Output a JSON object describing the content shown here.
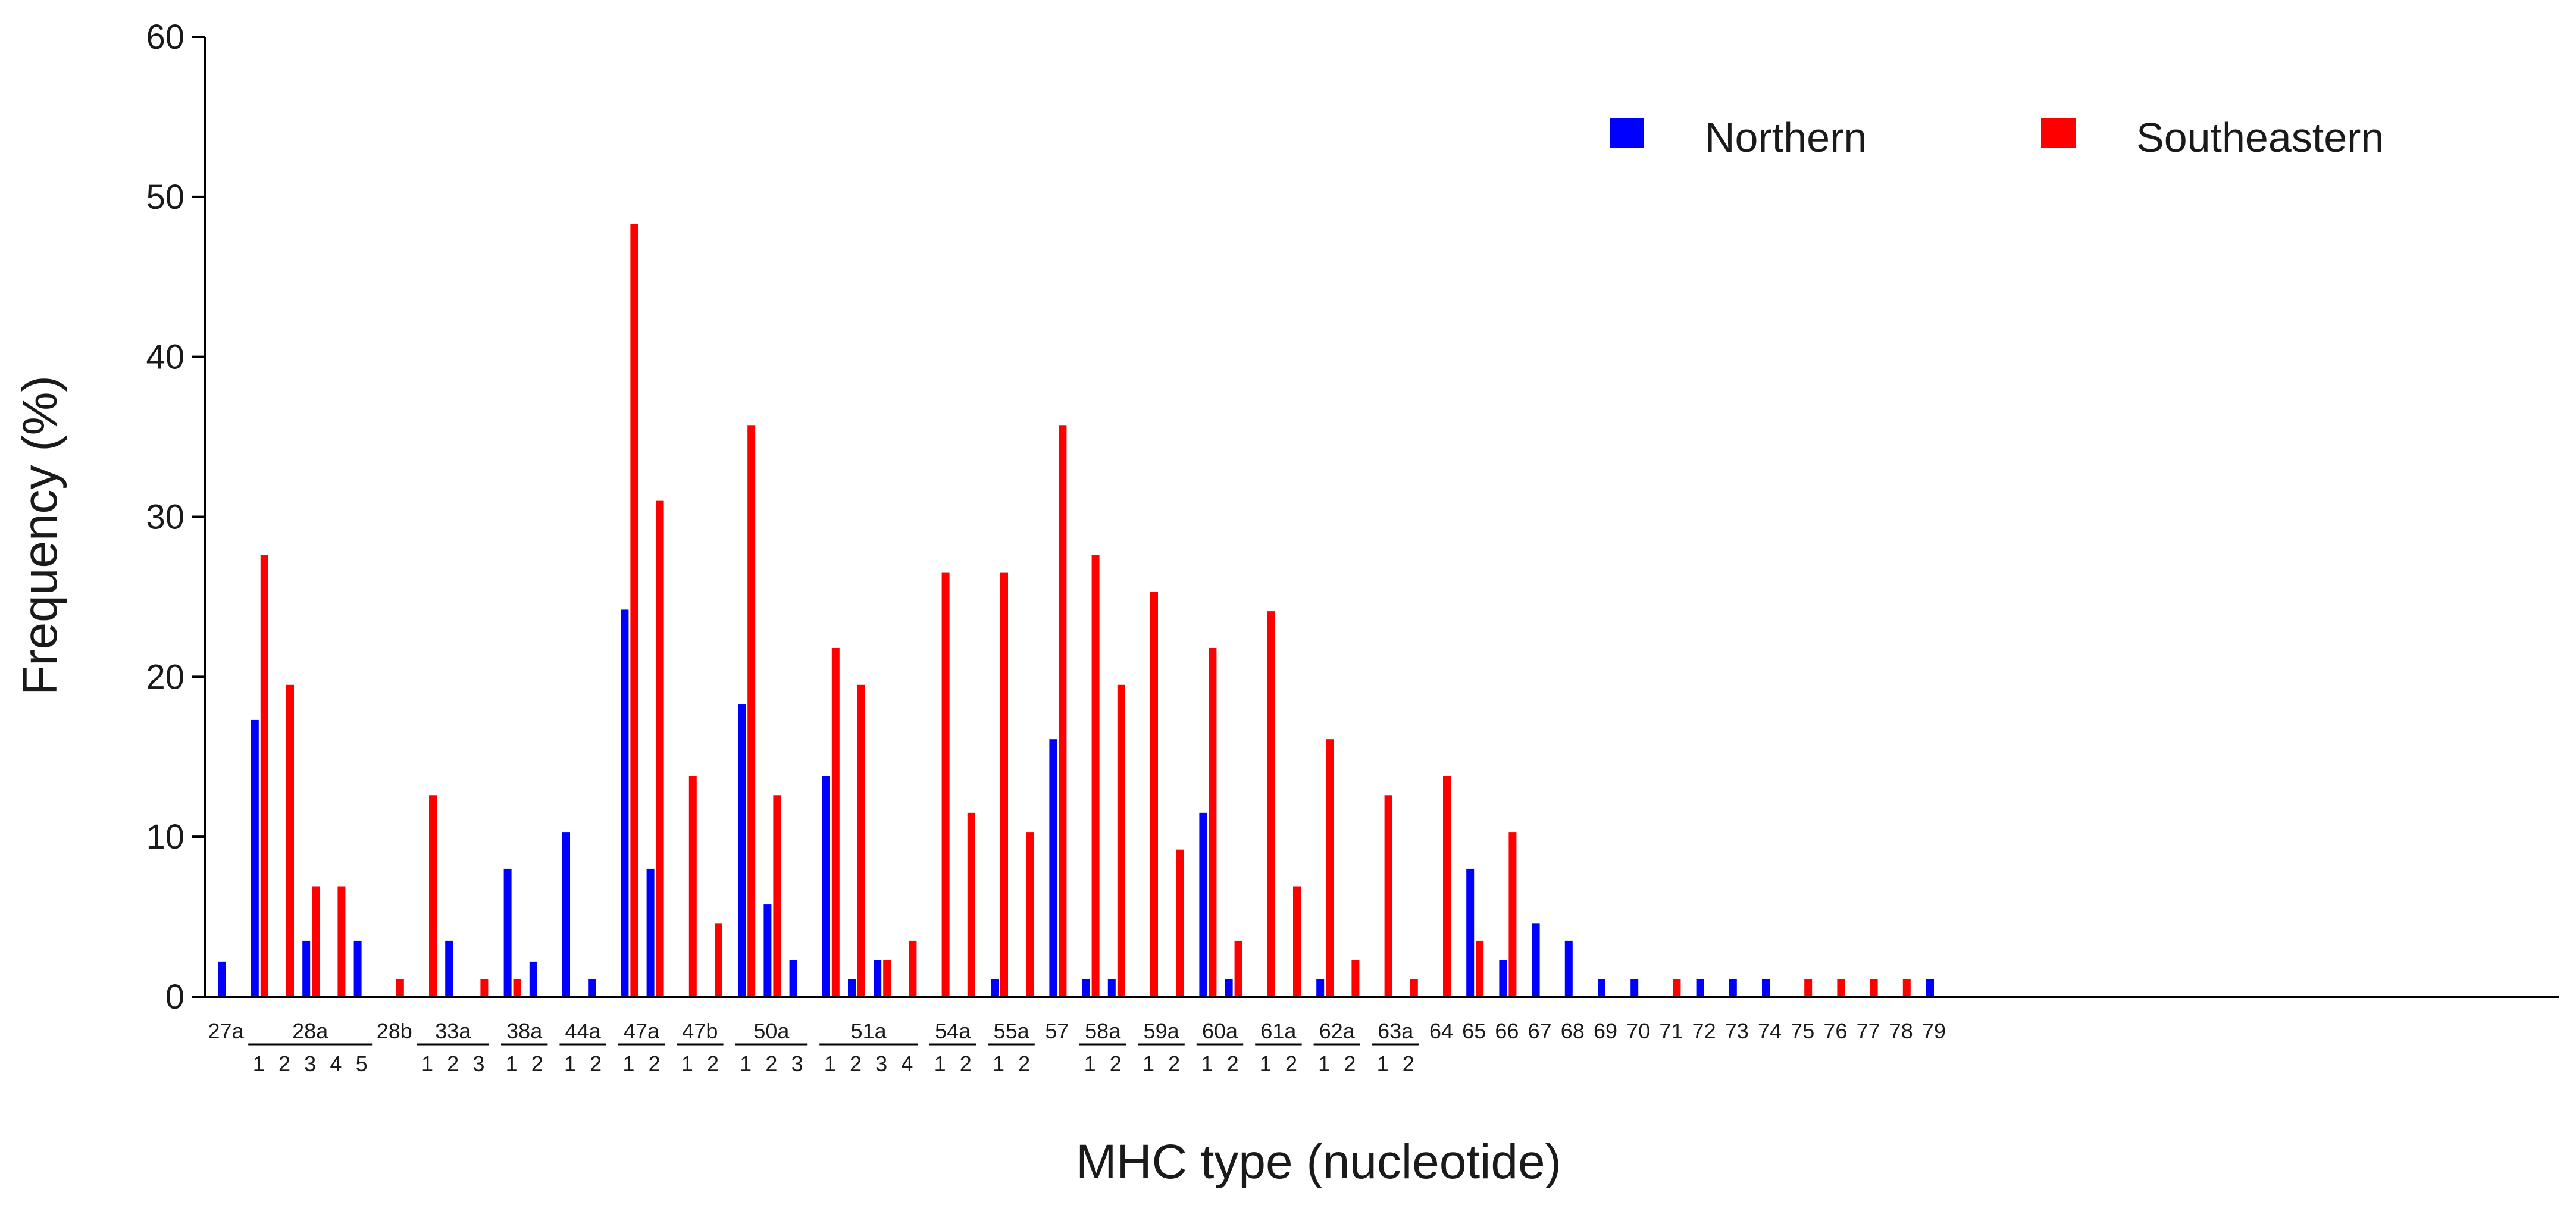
{
  "chart_data": {
    "type": "bar",
    "title": "",
    "xlabel": "MHC type (nucleotide)",
    "ylabel": "Frequency (%)",
    "ylim": [
      0,
      60
    ],
    "yticks": [
      "0",
      "10",
      "20",
      "30",
      "40",
      "50",
      "60"
    ],
    "grid": false,
    "legend_position": "top-right",
    "colors": {
      "Northern": "#0000ff",
      "Southeastern": "#ff0000"
    },
    "series": [
      {
        "name": "Northern",
        "color": "#0000ff",
        "points": [
          {
            "group": "27a",
            "allele": "",
            "value": 2.2
          },
          {
            "group": "28a",
            "allele": "1",
            "value": 17.3
          },
          {
            "group": "28a",
            "allele": "3",
            "value": 3.5
          },
          {
            "group": "28a",
            "allele": "5",
            "value": 3.5
          },
          {
            "group": "33a",
            "allele": "2",
            "value": 3.5
          },
          {
            "group": "38a",
            "allele": "1",
            "value": 8.0
          },
          {
            "group": "38a",
            "allele": "2",
            "value": 2.2
          },
          {
            "group": "44a",
            "allele": "1",
            "value": 10.3
          },
          {
            "group": "44a",
            "allele": "2",
            "value": 1.1
          },
          {
            "group": "47a",
            "allele": "1",
            "value": 24.2
          },
          {
            "group": "47a",
            "allele": "2",
            "value": 8.0
          },
          {
            "group": "50a",
            "allele": "1",
            "value": 18.3
          },
          {
            "group": "50a",
            "allele": "2",
            "value": 5.8
          },
          {
            "group": "50a",
            "allele": "3",
            "value": 2.3
          },
          {
            "group": "51a",
            "allele": "1",
            "value": 13.8
          },
          {
            "group": "51a",
            "allele": "2",
            "value": 1.1
          },
          {
            "group": "51a",
            "allele": "3",
            "value": 2.3
          },
          {
            "group": "55a",
            "allele": "1",
            "value": 1.1
          },
          {
            "group": "57",
            "allele": "",
            "value": 16.1
          },
          {
            "group": "58a",
            "allele": "1",
            "value": 1.1
          },
          {
            "group": "58a",
            "allele": "2",
            "value": 1.1
          },
          {
            "group": "60a",
            "allele": "1",
            "value": 11.5
          },
          {
            "group": "60a",
            "allele": "2",
            "value": 1.1
          },
          {
            "group": "62a",
            "allele": "1",
            "value": 1.1
          },
          {
            "group": "65",
            "allele": "",
            "value": 8.0
          },
          {
            "group": "66",
            "allele": "",
            "value": 2.3
          },
          {
            "group": "67",
            "allele": "",
            "value": 4.6
          },
          {
            "group": "68",
            "allele": "",
            "value": 3.5
          },
          {
            "group": "69",
            "allele": "",
            "value": 1.1
          },
          {
            "group": "70",
            "allele": "",
            "value": 1.1
          },
          {
            "group": "72",
            "allele": "",
            "value": 1.1
          },
          {
            "group": "73",
            "allele": "",
            "value": 1.1
          },
          {
            "group": "74",
            "allele": "",
            "value": 1.1
          },
          {
            "group": "79",
            "allele": "",
            "value": 1.1
          }
        ]
      },
      {
        "name": "Southeastern",
        "color": "#ff0000",
        "points": [
          {
            "group": "28a",
            "allele": "1",
            "value": 27.6
          },
          {
            "group": "28a",
            "allele": "2",
            "value": 19.5
          },
          {
            "group": "28a",
            "allele": "3",
            "value": 6.9
          },
          {
            "group": "28a",
            "allele": "4",
            "value": 6.9
          },
          {
            "group": "28b",
            "allele": "",
            "value": 1.1
          },
          {
            "group": "33a",
            "allele": "1",
            "value": 12.6
          },
          {
            "group": "33a",
            "allele": "3",
            "value": 1.1
          },
          {
            "group": "38a",
            "allele": "1",
            "value": 1.1
          },
          {
            "group": "47a",
            "allele": "1",
            "value": 48.3
          },
          {
            "group": "47a",
            "allele": "2",
            "value": 31.0
          },
          {
            "group": "47b",
            "allele": "1",
            "value": 13.8
          },
          {
            "group": "47b",
            "allele": "2",
            "value": 4.6
          },
          {
            "group": "50a",
            "allele": "1",
            "value": 35.7
          },
          {
            "group": "50a",
            "allele": "2",
            "value": 12.6
          },
          {
            "group": "51a",
            "allele": "1",
            "value": 21.8
          },
          {
            "group": "51a",
            "allele": "2",
            "value": 19.5
          },
          {
            "group": "51a",
            "allele": "3",
            "value": 2.3
          },
          {
            "group": "51a",
            "allele": "4",
            "value": 3.5
          },
          {
            "group": "54a",
            "allele": "1",
            "value": 26.5
          },
          {
            "group": "54a",
            "allele": "2",
            "value": 11.5
          },
          {
            "group": "55a",
            "allele": "1",
            "value": 26.5
          },
          {
            "group": "55a",
            "allele": "2",
            "value": 10.3
          },
          {
            "group": "57",
            "allele": "",
            "value": 35.7
          },
          {
            "group": "58a",
            "allele": "1",
            "value": 27.6
          },
          {
            "group": "58a",
            "allele": "2",
            "value": 19.5
          },
          {
            "group": "59a",
            "allele": "1",
            "value": 25.3
          },
          {
            "group": "59a",
            "allele": "2",
            "value": 9.2
          },
          {
            "group": "60a",
            "allele": "1",
            "value": 21.8
          },
          {
            "group": "60a",
            "allele": "2",
            "value": 3.5
          },
          {
            "group": "61a",
            "allele": "1",
            "value": 24.1
          },
          {
            "group": "61a",
            "allele": "2",
            "value": 6.9
          },
          {
            "group": "62a",
            "allele": "1",
            "value": 16.1
          },
          {
            "group": "62a",
            "allele": "2",
            "value": 2.3
          },
          {
            "group": "63a",
            "allele": "1",
            "value": 12.6
          },
          {
            "group": "63a",
            "allele": "2",
            "value": 1.1
          },
          {
            "group": "64",
            "allele": "",
            "value": 13.8
          },
          {
            "group": "65",
            "allele": "",
            "value": 3.5
          },
          {
            "group": "66",
            "allele": "",
            "value": 10.3
          },
          {
            "group": "71",
            "allele": "",
            "value": 1.1
          },
          {
            "group": "75",
            "allele": "",
            "value": 1.1
          },
          {
            "group": "76",
            "allele": "",
            "value": 1.1
          },
          {
            "group": "77",
            "allele": "",
            "value": 1.1
          },
          {
            "group": "78",
            "allele": "",
            "value": 1.1
          }
        ]
      }
    ],
    "categories": [
      {
        "label": "27a",
        "alleles": []
      },
      {
        "label": "28a",
        "alleles": [
          "1",
          "2",
          "3",
          "4",
          "5"
        ]
      },
      {
        "label": "28b",
        "alleles": []
      },
      {
        "label": "33a",
        "alleles": [
          "1",
          "2",
          "3"
        ]
      },
      {
        "label": "38a",
        "alleles": [
          "1",
          "2"
        ]
      },
      {
        "label": "44a",
        "alleles": [
          "1",
          "2"
        ]
      },
      {
        "label": "47a",
        "alleles": [
          "1",
          "2"
        ]
      },
      {
        "label": "47b",
        "alleles": [
          "1",
          "2"
        ]
      },
      {
        "label": "50a",
        "alleles": [
          "1",
          "2",
          "3"
        ]
      },
      {
        "label": "51a",
        "alleles": [
          "1",
          "2",
          "3",
          "4"
        ]
      },
      {
        "label": "54a",
        "alleles": [
          "1",
          "2"
        ]
      },
      {
        "label": "55a",
        "alleles": [
          "1",
          "2"
        ]
      },
      {
        "label": "57",
        "alleles": []
      },
      {
        "label": "58a",
        "alleles": [
          "1",
          "2"
        ]
      },
      {
        "label": "59a",
        "alleles": [
          "1",
          "2"
        ]
      },
      {
        "label": "60a",
        "alleles": [
          "1",
          "2"
        ]
      },
      {
        "label": "61a",
        "alleles": [
          "1",
          "2"
        ]
      },
      {
        "label": "62a",
        "alleles": [
          "1",
          "2"
        ]
      },
      {
        "label": "63a",
        "alleles": [
          "1",
          "2"
        ]
      },
      {
        "label": "64",
        "alleles": []
      },
      {
        "label": "65",
        "alleles": []
      },
      {
        "label": "66",
        "alleles": []
      },
      {
        "label": "67",
        "alleles": []
      },
      {
        "label": "68",
        "alleles": []
      },
      {
        "label": "69",
        "alleles": []
      },
      {
        "label": "70",
        "alleles": []
      },
      {
        "label": "71",
        "alleles": []
      },
      {
        "label": "72",
        "alleles": []
      },
      {
        "label": "73",
        "alleles": []
      },
      {
        "label": "74",
        "alleles": []
      },
      {
        "label": "75",
        "alleles": []
      },
      {
        "label": "76",
        "alleles": []
      },
      {
        "label": "77",
        "alleles": []
      },
      {
        "label": "78",
        "alleles": []
      },
      {
        "label": "79",
        "alleles": []
      }
    ]
  }
}
